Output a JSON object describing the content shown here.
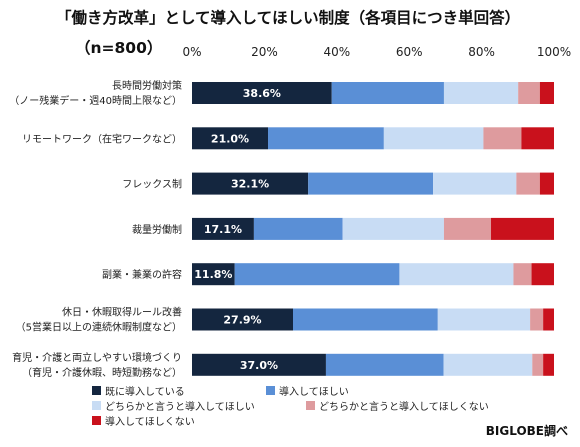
{
  "chart_data": {
    "type": "bar",
    "orientation": "horizontal",
    "stacked": "100%",
    "title": "「働き方改革」として導入してほしい制度（各項目につき単回答）",
    "subtitle": "（n=800）",
    "categories": [
      [
        "長時間労働対策",
        "（ノー残業デー・週40時間上限など）"
      ],
      [
        "リモートワーク（在宅ワークなど）"
      ],
      [
        "フレックス制"
      ],
      [
        "裁量労働制"
      ],
      [
        "副業・兼業の許容"
      ],
      [
        "休日・休暇取得ルール改善",
        "（5営業日以上の連続休暇制度など）"
      ],
      [
        "育児・介護と両立しやすい環境づくり",
        "（育児・介護休暇、時短勤務など）"
      ]
    ],
    "series": [
      {
        "name": "既に導入している",
        "color": "#14263f",
        "values": [
          38.6,
          21.0,
          32.1,
          17.1,
          11.8,
          27.9,
          37.0
        ],
        "labels": [
          "38.6%",
          "21.0%",
          "32.1%",
          "17.1%",
          "11.8%",
          "27.9%",
          "37.0%"
        ]
      },
      {
        "name": "導入してほしい",
        "color": "#5a8fd6",
        "values": [
          31.0,
          32.0,
          34.5,
          24.5,
          45.5,
          40.0,
          32.5
        ]
      },
      {
        "name": "どちらかと言うと導入してほしい",
        "color": "#c8dcf4",
        "values": [
          20.5,
          27.5,
          23.0,
          28.0,
          31.5,
          25.5,
          24.5
        ]
      },
      {
        "name": "どちらかと言うと導入してほしくない",
        "color": "#de9b9e",
        "values": [
          6.0,
          10.5,
          6.5,
          13.0,
          5.0,
          3.6,
          3.0
        ]
      },
      {
        "name": "導入してほしくない",
        "color": "#c9111c",
        "values": [
          3.9,
          9.0,
          3.9,
          17.4,
          6.2,
          3.0,
          3.0
        ]
      }
    ],
    "xticks": [
      "0%",
      "20%",
      "40%",
      "60%",
      "80%",
      "100%"
    ],
    "xlim": [
      0,
      100
    ],
    "grid": false,
    "legend_position": "bottom"
  },
  "source": "BIGLOBE調べ"
}
